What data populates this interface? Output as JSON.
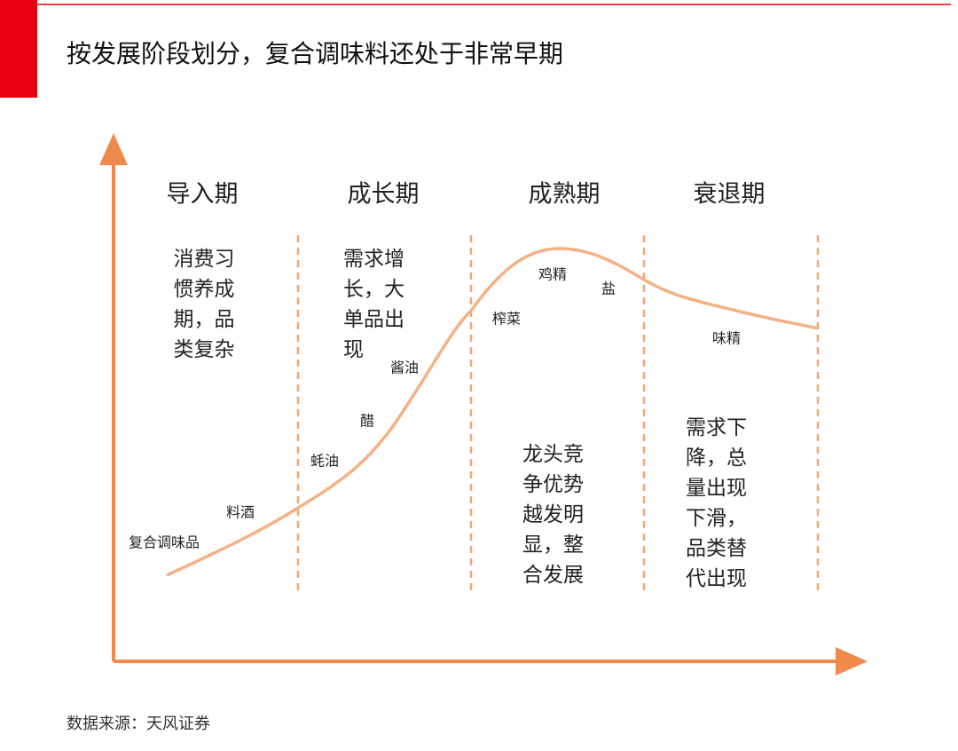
{
  "header": {
    "title": "按发展阶段划分，复合调味料还处于非常早期"
  },
  "stages": [
    {
      "name": "导入期",
      "description": [
        "消费习",
        "惯养成",
        "期，品",
        "类复杂"
      ]
    },
    {
      "name": "成长期",
      "description": [
        "需求增",
        "长，大",
        "单品出",
        "现"
      ]
    },
    {
      "name": "成熟期",
      "description": [
        "龙头竞",
        "争优势",
        "越发明",
        "显，整",
        "合发展"
      ]
    },
    {
      "name": "衰退期",
      "description": [
        "需求下",
        "降，总",
        "量出现",
        "下滑，",
        "品类替",
        "代出现"
      ]
    }
  ],
  "products": [
    "复合调味品",
    "料酒",
    "蚝油",
    "醋",
    "酱油",
    "榨菜",
    "鸡精",
    "盐",
    "味精"
  ],
  "source": "数据来源：天风证券"
}
